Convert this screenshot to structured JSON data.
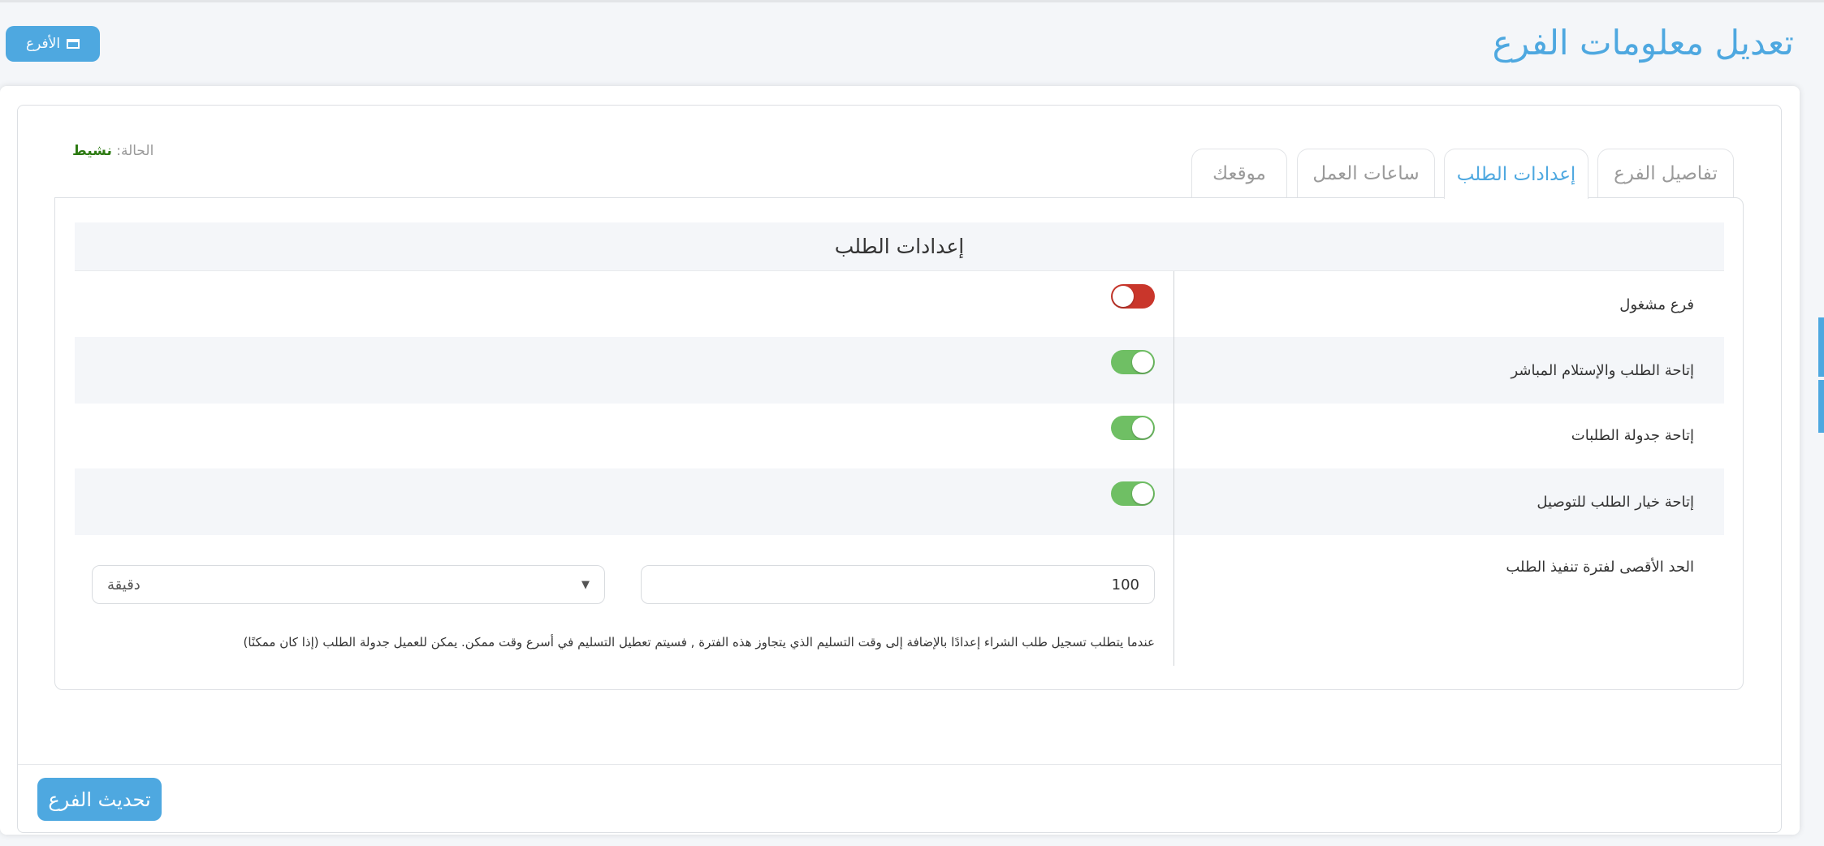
{
  "header": {
    "title": "تعديل معلومات الفرع",
    "back_button": "الأفرع",
    "back_icon": "list-icon"
  },
  "status": {
    "label": "الحالة:",
    "value": "نشيط",
    "value_color": "#2c7a12"
  },
  "tabs": [
    {
      "label": "تفاصيل الفرع",
      "active": false
    },
    {
      "label": "إعدادات الطلب",
      "active": true
    },
    {
      "label": "ساعات العمل",
      "active": false
    },
    {
      "label": "موقعك",
      "active": false
    }
  ],
  "section": {
    "title": "إعدادات الطلب",
    "settings": [
      {
        "label": "فرع مشغول",
        "enabled": false
      },
      {
        "label": "إتاحة الطلب والإستلام المباشر",
        "enabled": true
      },
      {
        "label": "إتاحة جدولة الطلبات",
        "enabled": true
      },
      {
        "label": "إتاحة خيار الطلب للتوصيل",
        "enabled": true
      }
    ],
    "max_time": {
      "label": "الحد الأقصى لفترة تنفيذ الطلب",
      "value": "100",
      "unit": "دقيقة"
    },
    "note": "عندما يتطلب تسجيل طلب الشراء إعدادًا بالإضافة إلى وقت التسليم الذي يتجاوز هذه الفترة , فسيتم تعطيل التسليم في أسرع وقت ممكن. يمكن للعميل جدولة الطلب (إذا كان ممكنًا)"
  },
  "footer": {
    "update_button": "تحديث الفرع"
  },
  "colors": {
    "accent": "#4ea8e0",
    "toggle_on": "#6fbf64",
    "toggle_off": "#c9362b"
  }
}
